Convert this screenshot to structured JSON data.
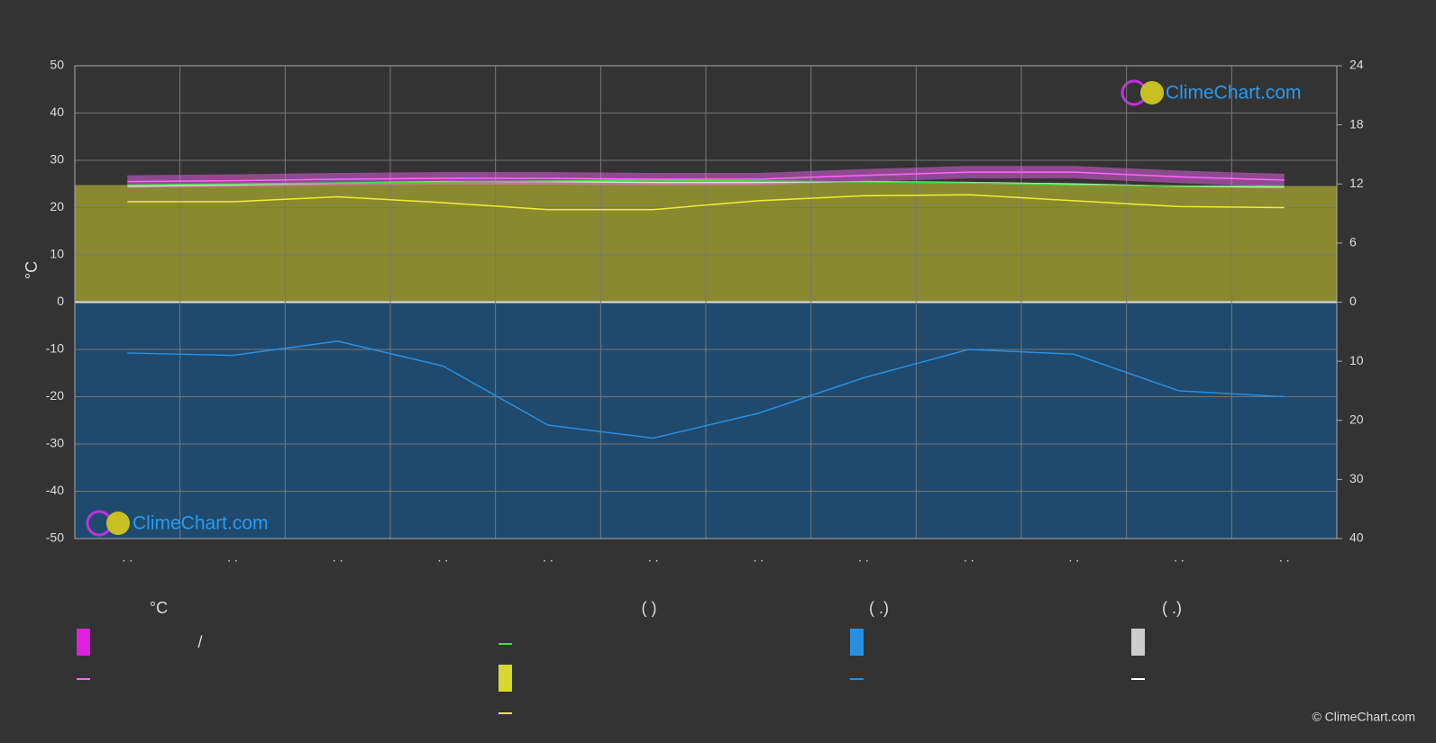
{
  "chart_data": {
    "type": "line",
    "categories": [
      ". .",
      ". .",
      ". .",
      ". .",
      ". .",
      ". .",
      ". .",
      ". .",
      ". .",
      ". .",
      ". .",
      ". ."
    ],
    "y_label": "°C",
    "ylim": [
      -50,
      50
    ],
    "yticks": [
      -50,
      -40,
      -30,
      -20,
      -10,
      0,
      10,
      20,
      30,
      40,
      50
    ],
    "y2lim": [
      0,
      24
    ],
    "y2ticks": [
      0,
      6,
      12,
      18,
      24
    ],
    "y3lim": [
      0,
      40
    ],
    "y3ticks": [
      10,
      20,
      30,
      40
    ],
    "grid": true,
    "series": [
      {
        "color": "#ff66ff",
        "axis": "y",
        "values": [
          25.5,
          25.7,
          26.0,
          26.2,
          26.2,
          26.0,
          26.0,
          26.8,
          27.5,
          27.5,
          26.5,
          25.8
        ]
      },
      {
        "color": "#dddddd",
        "axis": "y",
        "values": [
          24.5,
          24.8,
          25.2,
          25.5,
          25.5,
          25.3,
          25.3,
          25.5,
          25.3,
          25.0,
          24.5,
          24.3
        ]
      },
      {
        "color": "#44dd44",
        "axis": "y2",
        "values": [
          11.9,
          12.0,
          12.1,
          12.2,
          12.3,
          12.4,
          12.3,
          12.2,
          12.1,
          11.9,
          11.8,
          11.8
        ]
      },
      {
        "color": "#eeee33",
        "axis": "y2",
        "values": [
          10.2,
          10.2,
          10.7,
          10.1,
          9.4,
          9.4,
          10.3,
          10.8,
          10.9,
          10.3,
          9.7,
          9.6
        ]
      },
      {
        "color": "#2a8fe0",
        "axis": "y3",
        "values": [
          8.6,
          9.0,
          6.6,
          10.8,
          20.8,
          23.0,
          18.8,
          12.8,
          8.0,
          8.8,
          15.0,
          16.0
        ]
      }
    ],
    "logo": "ClimeChart.com",
    "copyright": "© ClimeChart.com",
    "legend_headers": [
      "°C",
      "(          )",
      "(   .)",
      "(   .)"
    ],
    "legend_slash": "/"
  }
}
